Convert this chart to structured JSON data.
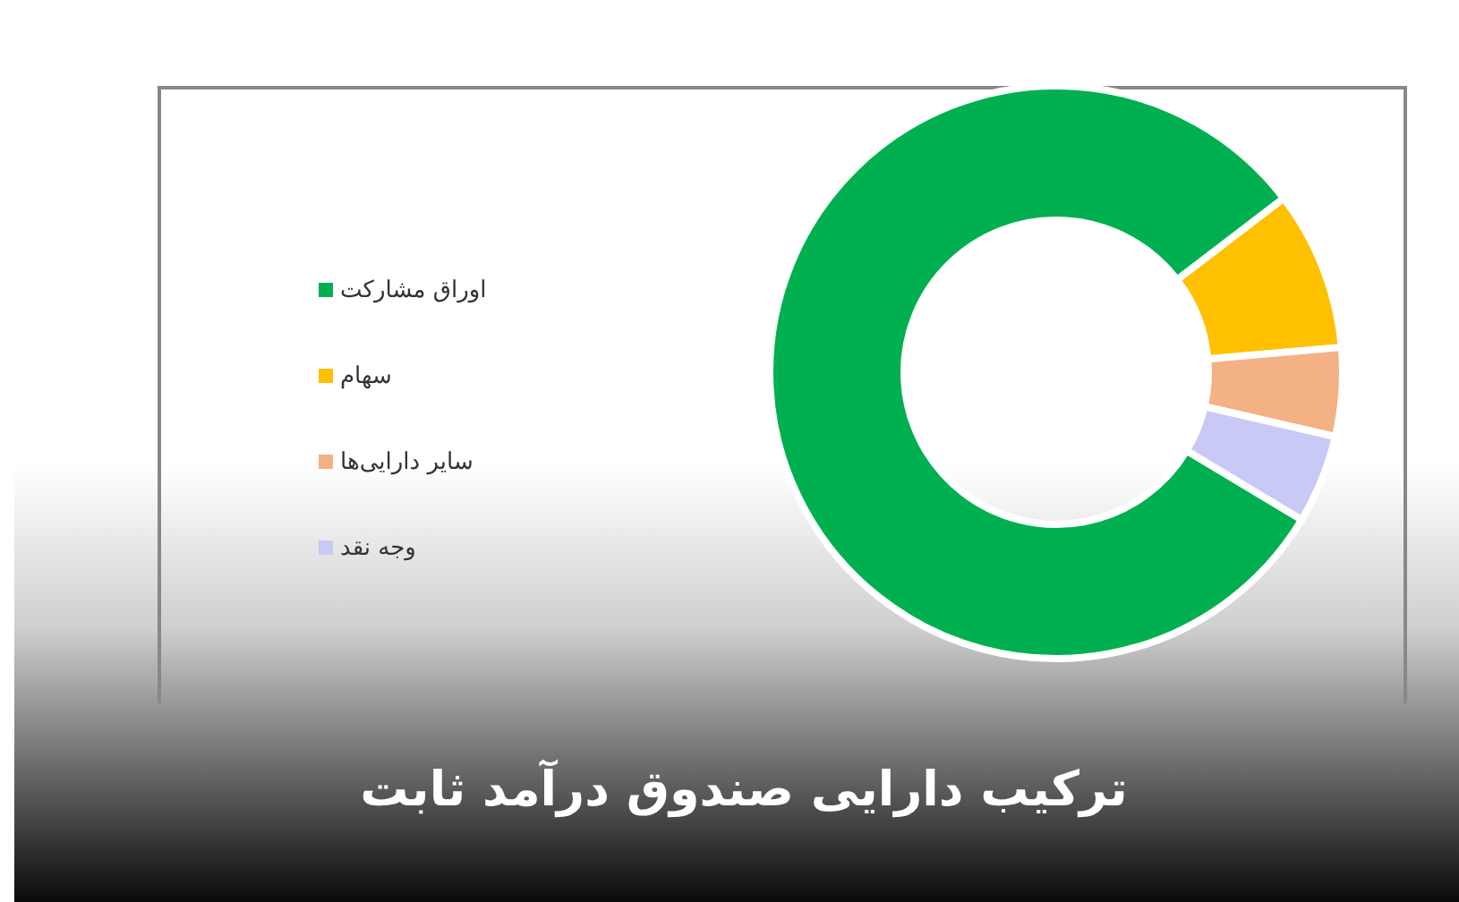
{
  "chart_data": {
    "type": "donut",
    "title": "ترکیب دارایی صندوق درآمد ثابت",
    "categories": [
      "اوراق مشارکت",
      "سهام",
      "سایر دارایی‌ها",
      "وجه نقد"
    ],
    "values": [
      81,
      9,
      5,
      5
    ],
    "colors": [
      "#00b050",
      "#ffc000",
      "#f4b183",
      "#c9c9f5"
    ],
    "legend": "left"
  }
}
